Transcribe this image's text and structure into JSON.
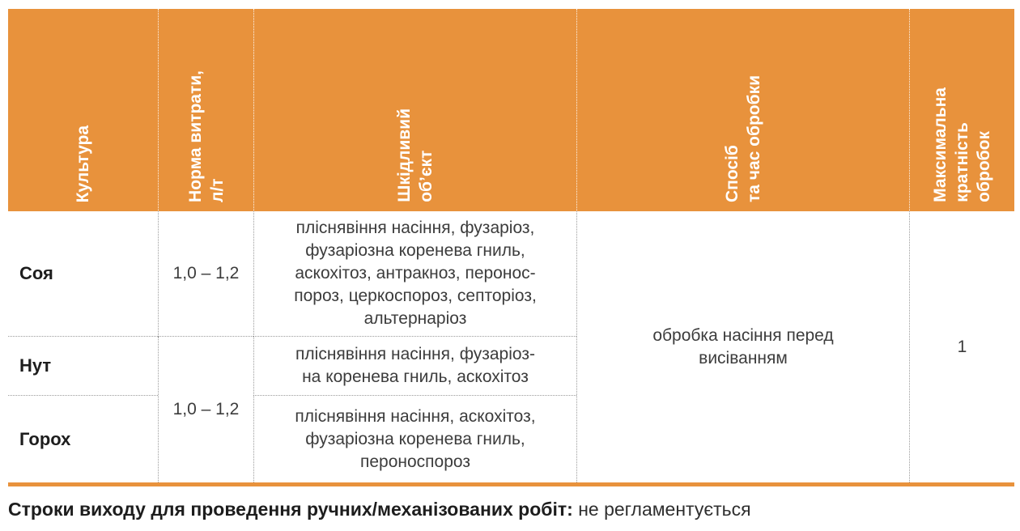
{
  "colors": {
    "accent_orange": "#E8923C",
    "header_text": "#FFFFFF",
    "body_text": "#3C3C3C",
    "emphasis_text": "#1D1D1D"
  },
  "table": {
    "columns": [
      {
        "label": "Культура"
      },
      {
        "label": "Норма витрати,\nл/т"
      },
      {
        "label": "Шкідливий\nоб’єкт"
      },
      {
        "label": "Спосіб\nта час обробки"
      },
      {
        "label": "Максимальна\nкратність\nобробок"
      }
    ],
    "rows": [
      {
        "culture": "Соя",
        "rate": "1,0 – 1,2",
        "pest": "пліснявіння насіння, фузаріоз,\nфузаріозна коренева гниль,\nаскохітоз, антракноз, перонос-\nпороз, церкоспороз, септоріоз,\nальтернаріоз"
      },
      {
        "culture": "Нут",
        "pest": "пліснявіння насіння, фузаріоз-\nна коренева гниль, аскохітоз"
      },
      {
        "culture": "Горох",
        "pest": "пліснявіння насіння, аскохітоз,\nфузаріозна коренева гниль,\nпероноспороз"
      }
    ],
    "merged": {
      "rate_nut_pea": "1,0 – 1,2",
      "method": "обробка насіння перед\nвисіванням",
      "max_treatments": "1"
    }
  },
  "footer": {
    "label": "Строки виходу для проведення ручних/механізованих робіт:",
    "value": "не регламентується"
  }
}
